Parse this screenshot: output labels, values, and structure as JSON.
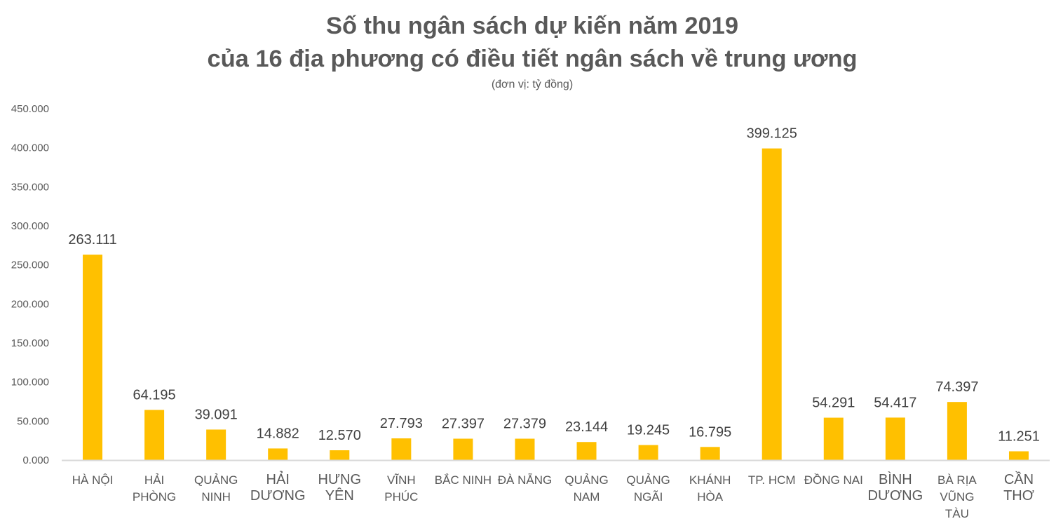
{
  "chart_data": {
    "type": "bar",
    "title": [
      "Số thu ngân sách dự kiến năm 2019",
      "của 16 địa phương có điều tiết ngân sách về trung ương"
    ],
    "subtitle": "(đơn vị: tỷ đồng)",
    "categories": [
      [
        "HÀ NỘI"
      ],
      [
        "HẢI",
        "PHÒNG"
      ],
      [
        "QUẢNG",
        "NINH"
      ],
      [
        "HẢI",
        "DƯƠNG"
      ],
      [
        "HƯNG",
        "YÊN"
      ],
      [
        "VĨNH",
        "PHÚC"
      ],
      [
        "BẮC NINH"
      ],
      [
        "ĐÀ NẴNG"
      ],
      [
        "QUẢNG",
        "NAM"
      ],
      [
        "QUẢNG",
        "NGÃI"
      ],
      [
        "KHÁNH",
        "HÒA"
      ],
      [
        "TP. HCM"
      ],
      [
        "ĐỒNG NAI"
      ],
      [
        "BÌNH",
        "DƯƠNG"
      ],
      [
        "BÀ RỊA",
        "VŨNG",
        "TÀU"
      ],
      [
        "CẦN",
        "THƠ"
      ]
    ],
    "large_label_categories": [
      3,
      4,
      13,
      15
    ],
    "values": [
      263111,
      64195,
      39091,
      14882,
      12570,
      27793,
      27397,
      27379,
      23144,
      19245,
      16795,
      399125,
      54291,
      54417,
      74397,
      11251
    ],
    "data_labels": [
      "263.111",
      "64.195",
      "39.091",
      "14.882",
      "12.570",
      "27.793",
      "27.397",
      "27.379",
      "23.144",
      "19.245",
      "16.795",
      "399.125",
      "54.291",
      "54.417",
      "74.397",
      "11.251"
    ],
    "ylim": [
      0,
      450000
    ],
    "yticks": [
      0,
      50000,
      100000,
      150000,
      200000,
      250000,
      300000,
      350000,
      400000,
      450000
    ],
    "ytick_labels": [
      "0.000",
      "50.000",
      "100.000",
      "150.000",
      "200.000",
      "250.000",
      "300.000",
      "350.000",
      "400.000",
      "450.000"
    ],
    "xlabel": "",
    "ylabel": "",
    "grid": false,
    "legend": "none",
    "colors": {
      "bar": "#FFC000",
      "axis": "#D9D9D9",
      "text": "#595959"
    }
  }
}
